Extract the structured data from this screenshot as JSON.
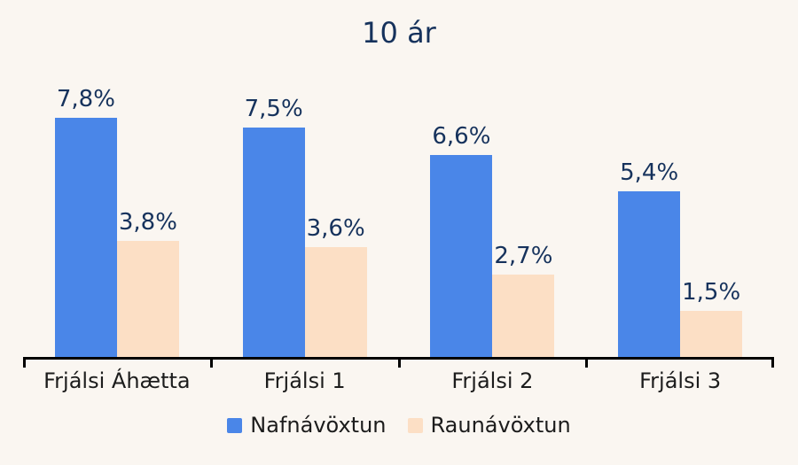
{
  "chart_data": {
    "type": "bar",
    "title": "10 ár",
    "categories": [
      "Frjálsi Áhætta",
      "Frjálsi 1",
      "Frjálsi 2",
      "Frjálsi 3"
    ],
    "series": [
      {
        "name": "Nafnávöxtun",
        "color": "#4a86e8",
        "values": [
          7.8,
          7.5,
          6.6,
          5.4
        ],
        "labels": [
          "7,8%",
          "7,5%",
          "6,6%",
          "5,4%"
        ]
      },
      {
        "name": "Raunávöxtun",
        "color": "#fcdfc5",
        "values": [
          3.8,
          3.6,
          2.7,
          1.5
        ],
        "labels": [
          "3,8%",
          "3,6%",
          "2,7%",
          "1,5%"
        ]
      }
    ],
    "xlabel": "",
    "ylabel": "",
    "ylim": [
      0,
      9.2
    ],
    "grid": false,
    "legend_position": "bottom",
    "value_suffix": "%",
    "decimal_separator": ","
  },
  "colors": {
    "background": "#faf6f1",
    "title_text": "#16325c",
    "data_label_text": "#16325c",
    "axis_text": "#1c1c1c",
    "axis_line": "#000000"
  }
}
